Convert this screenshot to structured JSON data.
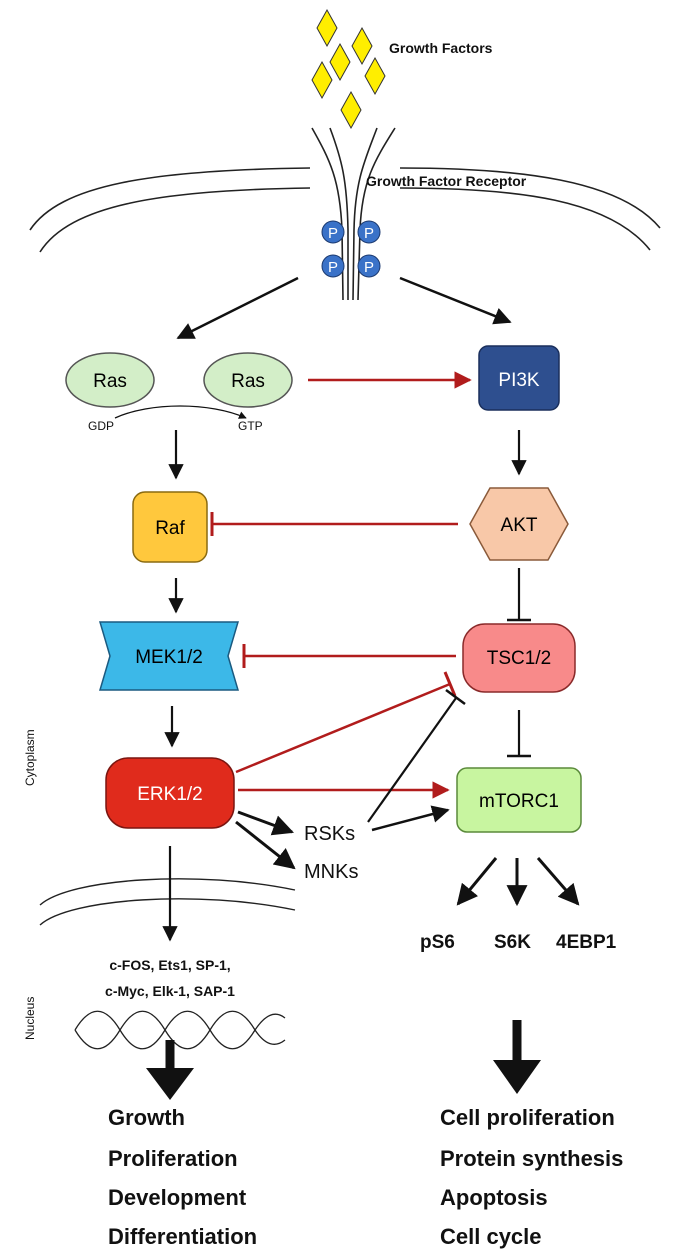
{
  "labels": {
    "growth_factors": "Growth Factors",
    "receptor": "Growth Factor Receptor",
    "phospho": "P",
    "gdp": "GDP",
    "gtp": "GTP",
    "cytoplasm": "Cytoplasm",
    "nucleus": "Nucleus"
  },
  "nodes": {
    "ras_left": "Ras",
    "ras_right": "Ras",
    "pi3k": "PI3K",
    "raf": "Raf",
    "akt": "AKT",
    "mek": "MEK1/2",
    "tsc": "TSC1/2",
    "erk": "ERK1/2",
    "mtorc1": "mTORC1",
    "rsks": "RSKs",
    "mnks": "MNKs",
    "ps6": "pS6",
    "s6k": "S6K",
    "4ebp1": "4EBP1"
  },
  "transcription_factors": {
    "line1": "c-FOS, Ets1, SP-1,",
    "line2": "c-Myc, Elk-1, SAP-1"
  },
  "outcomes_left": [
    "Growth",
    "Proliferation",
    "Development",
    "Differentiation"
  ],
  "outcomes_right": [
    "Cell proliferation",
    "Protein synthesis",
    "Apoptosis",
    "Cell cycle"
  ],
  "colors": {
    "ras": "#d3eec8",
    "pi3k": "#2e4f8f",
    "raf": "#ffc83d",
    "akt": "#f8c8a8",
    "mek": "#3cb8e8",
    "tsc": "#f88a8a",
    "erk": "#e02b1c",
    "mtorc1": "#c8f5a0",
    "growth_factor": "#ffee00",
    "phospho": "#3a72c8",
    "inhibit_red": "#b11c1c",
    "arrow_black": "#111111"
  }
}
